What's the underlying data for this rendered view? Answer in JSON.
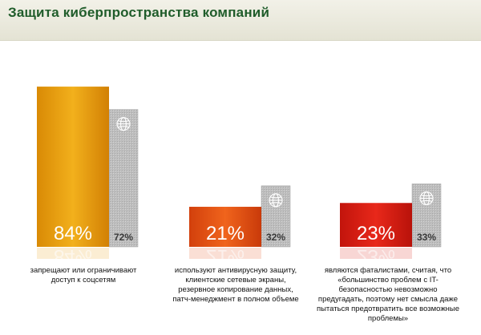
{
  "page": {
    "title": "Защита киберпространства компаний"
  },
  "chart_data": {
    "type": "bar",
    "title": "Защита киберпространства компаний",
    "ylim": [
      0,
      100
    ],
    "legend": "none",
    "grid": false,
    "categories": [
      "запрещают или ограничивают доступ к соцсетям",
      "используют антивирусную защиту, клиентские сетевые экраны, резервное копирование данных, патч-менеджмент в полном объеме",
      "являются фаталистами, считая, что «большинство проблем с IT-безопасностью невозможно предугадать, поэтому нет смысла даже пытаться предотвратить все возможные проблемы»"
    ],
    "series": [
      {
        "values": [
          84,
          21,
          23
        ],
        "labels": [
          "84%",
          "21%",
          "23%"
        ],
        "colors": [
          "#e89a0c",
          "#e34f14",
          "#d81c10"
        ]
      },
      {
        "values": [
          72,
          32,
          33
        ],
        "labels": [
          "72%",
          "32%",
          "33%"
        ],
        "colors": [
          "#b4b4b4",
          "#b4b4b4",
          "#b4b4b4"
        ],
        "icon": "globe-icon"
      }
    ],
    "captions": [
      [
        "запрещают или ограничивают",
        "доступ к соцсетям"
      ],
      [
        "используют антивирусную защиту,",
        "клиентские сетевые экраны,",
        "резервное копирование данных,",
        "патч-менеджмент в полном объеме"
      ],
      [
        "являются фаталистами, считая, что",
        "«большинство проблем с IT-",
        "безопасностью невозможно",
        "предугадать, поэтому нет смысла даже",
        "пытаться предотвратить все возможные",
        "проблемы»"
      ]
    ]
  }
}
